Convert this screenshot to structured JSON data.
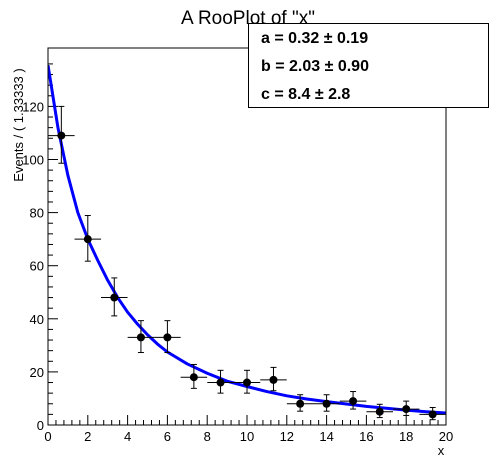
{
  "chart_data": {
    "type": "scatter",
    "title": "A RooPlot of \"x\"",
    "xlabel": "x",
    "ylabel": "Events / ( 1.33333 )",
    "xlim": [
      0,
      20
    ],
    "ylim": [
      0,
      120
    ],
    "x_ticks": [
      "0",
      "2",
      "4",
      "6",
      "8",
      "10",
      "12",
      "14",
      "16",
      "18",
      "20"
    ],
    "y_ticks": [
      "0",
      "20",
      "40",
      "60",
      "80",
      "100"
    ],
    "y_partial_tick": "120",
    "bin_half_width": 0.666667,
    "series": [
      {
        "type": "points_with_errors",
        "x": [
          0.67,
          2.0,
          3.33,
          4.67,
          6.0,
          7.33,
          8.67,
          10.0,
          11.33,
          12.67,
          14.0,
          15.33,
          16.67,
          18.0,
          19.33
        ],
        "y": [
          109,
          70,
          48,
          33,
          33,
          18,
          16,
          16,
          17,
          8,
          8,
          9,
          5,
          6,
          4
        ],
        "y_err_low": [
          10.4,
          8.3,
          6.9,
          5.7,
          5.7,
          4.2,
          4.0,
          4.0,
          4.1,
          2.8,
          2.8,
          3.0,
          2.2,
          2.4,
          2.0
        ],
        "y_err_high": [
          11.0,
          8.9,
          7.4,
          6.3,
          6.3,
          4.8,
          4.6,
          4.6,
          4.7,
          3.4,
          3.4,
          3.6,
          2.8,
          3.0,
          2.6
        ]
      },
      {
        "type": "fit_curve",
        "color": "#0000ff",
        "x": [
          0,
          0.5,
          1,
          1.5,
          2,
          2.5,
          3,
          3.5,
          4,
          4.5,
          5,
          5.5,
          6,
          7,
          8,
          9,
          10,
          11,
          12,
          13,
          14,
          15,
          16,
          17,
          18,
          19,
          20
        ],
        "y": [
          135.5,
          112,
          94,
          80,
          70,
          62,
          54.5,
          48,
          42.5,
          38,
          34,
          30.5,
          27.5,
          23,
          19.5,
          16.5,
          14.5,
          12.6,
          11,
          9.8,
          8.8,
          7.9,
          7.0,
          6.3,
          5.6,
          5.0,
          4.5
        ]
      }
    ],
    "stats": [
      {
        "name": "a",
        "value": "0.32",
        "error": "0.19"
      },
      {
        "name": "b",
        "value": "2.03",
        "error": "0.90"
      },
      {
        "name": "c",
        "value": "8.4",
        "error": "2.8"
      }
    ]
  }
}
